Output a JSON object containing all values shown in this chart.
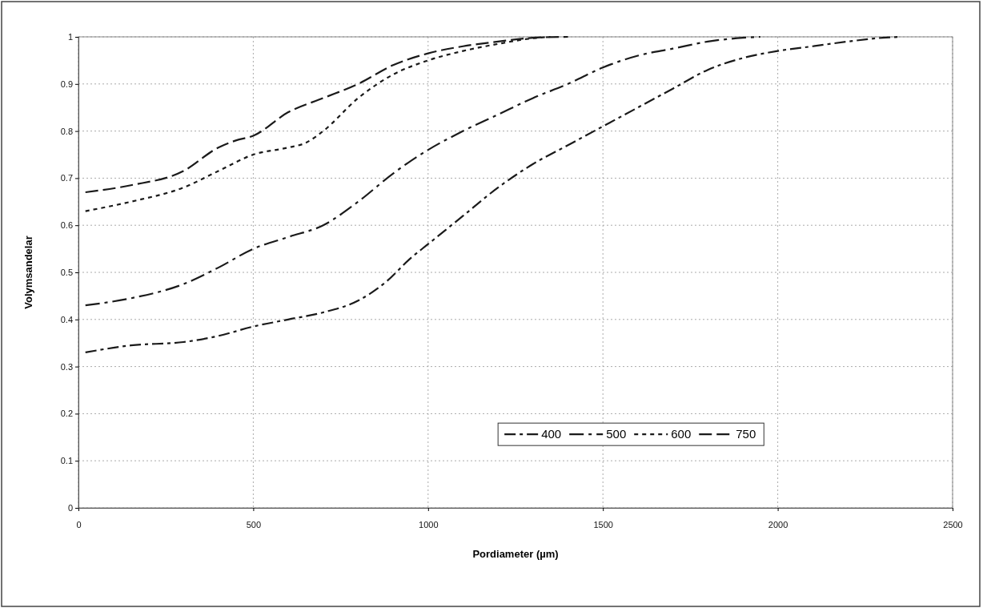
{
  "chart_data": {
    "type": "line",
    "xlabel": "Pordiameter (µm)",
    "ylabel": "Volymsandelar",
    "xlim": [
      0,
      2500
    ],
    "xticks": [
      0,
      500,
      1000,
      1500,
      2000,
      2500
    ],
    "ylim": [
      0,
      1
    ],
    "yticks": [
      0,
      0.1,
      0.2,
      0.3,
      0.4,
      0.5,
      0.6,
      0.7,
      0.8,
      0.9,
      1
    ],
    "grid": true,
    "legend": "bottom",
    "marker": "none",
    "series": [
      {
        "name": "400",
        "color": "#1a1a1a",
        "line_style": "dashed",
        "x": [
          20,
          150,
          300,
          400,
          500,
          600,
          700,
          800,
          880,
          950,
          1000,
          1100,
          1200,
          1300,
          1400,
          1500,
          1600,
          1700,
          1800,
          1900,
          2000,
          2100,
          2200,
          2300,
          2350
        ],
        "values": [
          0.33,
          0.345,
          0.352,
          0.365,
          0.385,
          0.4,
          0.415,
          0.44,
          0.48,
          0.53,
          0.56,
          0.62,
          0.68,
          0.73,
          0.77,
          0.81,
          0.85,
          0.89,
          0.93,
          0.955,
          0.97,
          0.98,
          0.99,
          0.998,
          1.0
        ]
      },
      {
        "name": "500",
        "color": "#1a1a1a",
        "line_style": "dashed",
        "x": [
          20,
          150,
          300,
          400,
          500,
          600,
          700,
          800,
          900,
          1000,
          1100,
          1200,
          1300,
          1400,
          1500,
          1600,
          1700,
          1800,
          1900,
          1950
        ],
        "values": [
          0.43,
          0.445,
          0.475,
          0.51,
          0.55,
          0.575,
          0.6,
          0.65,
          0.71,
          0.76,
          0.8,
          0.835,
          0.87,
          0.9,
          0.935,
          0.96,
          0.975,
          0.99,
          0.998,
          1.0
        ]
      },
      {
        "name": "600",
        "color": "#1a1a1a",
        "line_style": "dotted",
        "x": [
          20,
          150,
          300,
          400,
          500,
          600,
          650,
          700,
          800,
          900,
          1000,
          1100,
          1200,
          1300,
          1350
        ],
        "values": [
          0.63,
          0.65,
          0.68,
          0.715,
          0.75,
          0.765,
          0.775,
          0.8,
          0.87,
          0.92,
          0.95,
          0.97,
          0.985,
          0.997,
          1.0
        ]
      },
      {
        "name": "750",
        "color": "#1a1a1a",
        "line_style": "dashed",
        "x": [
          20,
          150,
          300,
          400,
          450,
          500,
          600,
          700,
          800,
          900,
          1000,
          1100,
          1200,
          1300,
          1400
        ],
        "values": [
          0.67,
          0.685,
          0.715,
          0.765,
          0.78,
          0.79,
          0.84,
          0.87,
          0.9,
          0.94,
          0.965,
          0.98,
          0.99,
          0.998,
          1.0
        ]
      }
    ]
  }
}
